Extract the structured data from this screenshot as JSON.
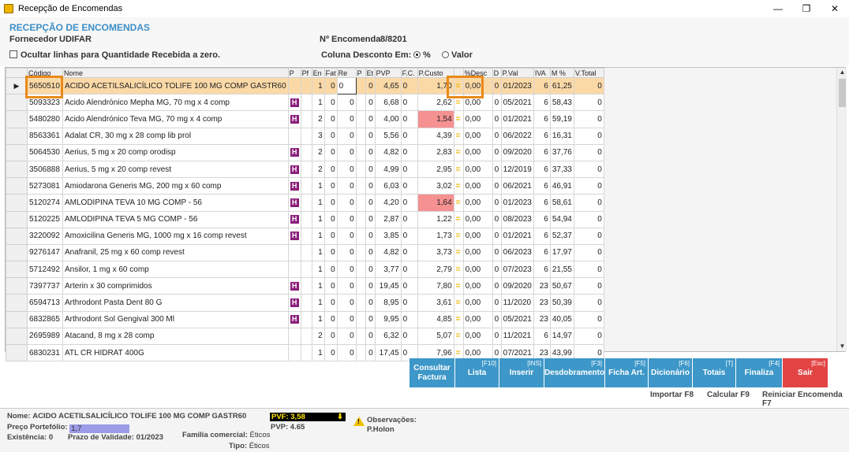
{
  "window": {
    "title": "Recepção de Encomendas",
    "minimize": "—",
    "restore": "❐",
    "close": "✕"
  },
  "header": {
    "title": "RECEPÇÃO DE ENCOMENDAS",
    "supplier_label": "Fornecedor",
    "supplier_value": "UDIFAR",
    "order_label": "Nº Encomenda",
    "order_value": "8/8201",
    "hide_zero_label": "Ocultar linhas para Quantidade Recebida a zero.",
    "discount_label": "Coluna Desconto Em:",
    "discount_pct": "%",
    "discount_val": "Valor"
  },
  "grid": {
    "columns": [
      "",
      "Código",
      "Nome",
      "P",
      "Pf",
      "En",
      "Fat",
      "Re",
      "P",
      "Et",
      "PVP",
      "F.C.",
      "P.Custo",
      "",
      "%Desc",
      "D",
      "P.Val",
      "IVA",
      "M %",
      "V.Total"
    ],
    "rows": [
      {
        "code": "5650510",
        "name": "ACIDO ACETILSALICÍLICO TOLIFE 100 MG COMP GASTR60",
        "h": false,
        "en": "1",
        "fat": "0",
        "re": "0",
        "p": "",
        "et": "0",
        "pvp": "4,65",
        "fc": "0",
        "pc": "1,70",
        "desc": "0,00",
        "d": "0",
        "pval": "01/2023",
        "iva": "6",
        "m": "61,25",
        "vt": "0"
      },
      {
        "code": "5093323",
        "name": "Acido Alendrónico Mepha MG, 70 mg x 4 comp",
        "h": true,
        "en": "1",
        "fat": "0",
        "re": "0",
        "p": "",
        "et": "0",
        "pvp": "6,68",
        "fc": "0",
        "pc": "2,62",
        "desc": "0,00",
        "d": "0",
        "pval": "05/2021",
        "iva": "6",
        "m": "58,43",
        "vt": "0"
      },
      {
        "code": "5480280",
        "name": "Acido Alendrónico Teva MG, 70 mg x 4 comp",
        "h": true,
        "en": "2",
        "fat": "0",
        "re": "0",
        "p": "",
        "et": "0",
        "pvp": "4,00",
        "fc": "0",
        "pc": "1,54",
        "desc": "0,00",
        "d": "0",
        "pval": "01/2021",
        "iva": "6",
        "m": "59,19",
        "vt": "0",
        "red": true
      },
      {
        "code": "8563361",
        "name": "Adalat CR, 30 mg x 28 comp lib prol",
        "h": false,
        "en": "3",
        "fat": "0",
        "re": "0",
        "p": "",
        "et": "0",
        "pvp": "5,56",
        "fc": "0",
        "pc": "4,39",
        "desc": "0,00",
        "d": "0",
        "pval": "06/2022",
        "iva": "6",
        "m": "16,31",
        "vt": "0"
      },
      {
        "code": "5064530",
        "name": "Aerius, 5 mg x 20 comp orodisp",
        "h": true,
        "en": "2",
        "fat": "0",
        "re": "0",
        "p": "",
        "et": "0",
        "pvp": "4,82",
        "fc": "0",
        "pc": "2,83",
        "desc": "0,00",
        "d": "0",
        "pval": "09/2020",
        "iva": "6",
        "m": "37,76",
        "vt": "0"
      },
      {
        "code": "3506888",
        "name": "Aerius, 5 mg x 20 comp revest",
        "h": true,
        "en": "2",
        "fat": "0",
        "re": "0",
        "p": "",
        "et": "0",
        "pvp": "4,99",
        "fc": "0",
        "pc": "2,95",
        "desc": "0,00",
        "d": "0",
        "pval": "12/2019",
        "iva": "6",
        "m": "37,33",
        "vt": "0"
      },
      {
        "code": "5273081",
        "name": "Amiodarona Generis MG, 200 mg x 60 comp",
        "h": true,
        "en": "1",
        "fat": "0",
        "re": "0",
        "p": "",
        "et": "0",
        "pvp": "6,03",
        "fc": "0",
        "pc": "3,02",
        "desc": "0,00",
        "d": "0",
        "pval": "06/2021",
        "iva": "6",
        "m": "46,91",
        "vt": "0"
      },
      {
        "code": "5120274",
        "name": "AMLODIPINA TEVA 10 MG COMP  - 56",
        "h": true,
        "en": "1",
        "fat": "0",
        "re": "0",
        "p": "",
        "et": "0",
        "pvp": "4,20",
        "fc": "0",
        "pc": "1,64",
        "desc": "0,00",
        "d": "0",
        "pval": "01/2023",
        "iva": "6",
        "m": "58,61",
        "vt": "0",
        "red": true
      },
      {
        "code": "5120225",
        "name": "AMLODIPINA TEVA 5 MG COMP  - 56",
        "h": true,
        "en": "1",
        "fat": "0",
        "re": "0",
        "p": "",
        "et": "0",
        "pvp": "2,87",
        "fc": "0",
        "pc": "1,22",
        "desc": "0,00",
        "d": "0",
        "pval": "08/2023",
        "iva": "6",
        "m": "54,94",
        "vt": "0"
      },
      {
        "code": "3220092",
        "name": "Amoxicilina Generis MG, 1000 mg x 16 comp revest",
        "h": true,
        "en": "1",
        "fat": "0",
        "re": "0",
        "p": "",
        "et": "0",
        "pvp": "3,85",
        "fc": "0",
        "pc": "1,73",
        "desc": "0,00",
        "d": "0",
        "pval": "01/2021",
        "iva": "6",
        "m": "52,37",
        "vt": "0"
      },
      {
        "code": "9276147",
        "name": "Anafranil, 25 mg x 60 comp revest",
        "h": false,
        "en": "1",
        "fat": "0",
        "re": "0",
        "p": "",
        "et": "0",
        "pvp": "4,82",
        "fc": "0",
        "pc": "3,73",
        "desc": "0,00",
        "d": "0",
        "pval": "06/2023",
        "iva": "6",
        "m": "17,97",
        "vt": "0"
      },
      {
        "code": "5712492",
        "name": "Ansilor, 1 mg x 60 comp",
        "h": false,
        "en": "1",
        "fat": "0",
        "re": "0",
        "p": "",
        "et": "0",
        "pvp": "3,77",
        "fc": "0",
        "pc": "2,79",
        "desc": "0,00",
        "d": "0",
        "pval": "07/2023",
        "iva": "6",
        "m": "21,55",
        "vt": "0"
      },
      {
        "code": "7397737",
        "name": "Arterin x 30 comprimidos",
        "h": true,
        "en": "1",
        "fat": "0",
        "re": "0",
        "p": "",
        "et": "0",
        "pvp": "19,45",
        "fc": "0",
        "pc": "7,80",
        "desc": "0,00",
        "d": "0",
        "pval": "09/2020",
        "iva": "23",
        "m": "50,67",
        "vt": "0"
      },
      {
        "code": "6594713",
        "name": "Arthrodont Pasta Dent 80 G",
        "h": true,
        "en": "1",
        "fat": "0",
        "re": "0",
        "p": "",
        "et": "0",
        "pvp": "8,95",
        "fc": "0",
        "pc": "3,61",
        "desc": "0,00",
        "d": "0",
        "pval": "11/2020",
        "iva": "23",
        "m": "50,39",
        "vt": "0"
      },
      {
        "code": "6832865",
        "name": "Arthrodont Sol Gengival 300 Ml",
        "h": true,
        "en": "1",
        "fat": "0",
        "re": "0",
        "p": "",
        "et": "0",
        "pvp": "9,95",
        "fc": "0",
        "pc": "4,85",
        "desc": "0,00",
        "d": "0",
        "pval": "05/2021",
        "iva": "23",
        "m": "40,05",
        "vt": "0"
      },
      {
        "code": "2695989",
        "name": "Atacand, 8 mg x 28 comp",
        "h": false,
        "en": "2",
        "fat": "0",
        "re": "0",
        "p": "",
        "et": "0",
        "pvp": "6,32",
        "fc": "0",
        "pc": "5,07",
        "desc": "0,00",
        "d": "0",
        "pval": "11/2021",
        "iva": "6",
        "m": "14,97",
        "vt": "0"
      },
      {
        "code": "6830231",
        "name": "ATL CR HIDRAT 400G",
        "h": false,
        "en": "1",
        "fat": "0",
        "re": "0",
        "p": "",
        "et": "0",
        "pvp": "17,45",
        "fc": "0",
        "pc": "7,96",
        "desc": "0,00",
        "d": "0",
        "pval": "07/2021",
        "iva": "23",
        "m": "43,99",
        "vt": "0"
      }
    ]
  },
  "toolbar": {
    "buttons": [
      {
        "label": "Consultar Factura",
        "key": ""
      },
      {
        "label": "Lista",
        "key": "[F10]"
      },
      {
        "label": "Inserir",
        "key": "[INS]"
      },
      {
        "label": "Desdobramento",
        "key": "[F3]"
      },
      {
        "label": "Ficha Art.",
        "key": "[F5]"
      },
      {
        "label": "Dicionário",
        "key": "[F6]"
      },
      {
        "label": "Totais",
        "key": "[T]"
      },
      {
        "label": "Finaliza",
        "key": "[F4]"
      },
      {
        "label": "Sair",
        "key": "[Esc]"
      }
    ],
    "import_link": "Importar F8",
    "calc_link": "Calcular F9",
    "restart_link": "Reiniciar Encomenda F7"
  },
  "status": {
    "name_label": "Nome:",
    "name_value": "ACIDO ACETILSALICÍLICO TOLIFE 100 MG COMP GASTR60",
    "pp_label": "Preço Portefólio:",
    "pp_value": "1,7",
    "stock_label": "Existência:",
    "stock_value": "0",
    "expiry_label": "Prazo de Validade:",
    "expiry_value": "01/2023",
    "family_label": "Família comercial:",
    "family_value": "Éticos",
    "type_label": "Tipo:",
    "type_value": "Éticos",
    "pvf": "PVF: 3,58",
    "pvp": "PVP: 4.65",
    "obs_label": "Observações:",
    "obs_value": "P.Holon"
  }
}
